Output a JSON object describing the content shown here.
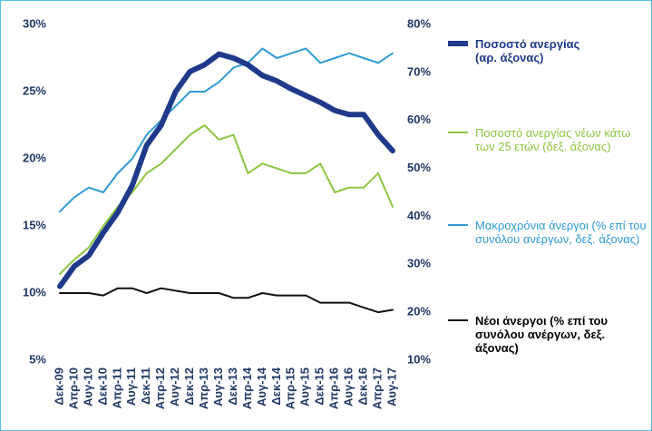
{
  "chart_data": {
    "type": "line",
    "categories": [
      "Δεκ-09",
      "Απρ-10",
      "Αυγ-10",
      "Δεκ-10",
      "Απρ-11",
      "Αυγ-11",
      "Δεκ-11",
      "Απρ-12",
      "Αυγ-12",
      "Δεκ-12",
      "Απρ-13",
      "Αυγ-13",
      "Δεκ-13",
      "Απρ-14",
      "Αυγ-14",
      "Δεκ-14",
      "Απρ-15",
      "Αυγ-15",
      "Δεκ-15",
      "Απρ-16",
      "Αυγ-16",
      "Δεκ-16",
      "Απρ-17",
      "Αυγ-17"
    ],
    "ylim": [
      5,
      30
    ],
    "yticks": [
      {
        "value": 5,
        "label": "5%"
      },
      {
        "value": 10,
        "label": "10%"
      },
      {
        "value": 15,
        "label": "15%"
      },
      {
        "value": 20,
        "label": "20%"
      },
      {
        "value": 25,
        "label": "25%"
      },
      {
        "value": 30,
        "label": "30%"
      }
    ],
    "y2lim": [
      10,
      80
    ],
    "y2ticks": [
      {
        "value": 10,
        "label": "10%"
      },
      {
        "value": 20,
        "label": "20%"
      },
      {
        "value": 30,
        "label": "30%"
      },
      {
        "value": 40,
        "label": "40%"
      },
      {
        "value": 50,
        "label": "50%"
      },
      {
        "value": 60,
        "label": "60%"
      },
      {
        "value": 70,
        "label": "70%"
      },
      {
        "value": 80,
        "label": "80%"
      }
    ],
    "series": [
      {
        "name": "Ποσοστό ανεργίας (αρ. άξονας)",
        "color": "#1f3a8a",
        "axis": "y",
        "values": [
          10.5,
          12,
          12.8,
          14.5,
          16,
          18,
          21,
          22.5,
          25,
          26.5,
          27,
          27.8,
          27.5,
          27,
          26.2,
          25.8,
          25.2,
          24.7,
          24.2,
          23.6,
          23.3,
          23.3,
          21.8,
          20.6
        ]
      },
      {
        "name": "Ποσοστό ανεργίας νέων κάτω των 25 ετών (δεξ. άξονας)",
        "color": "#8dc63f",
        "axis": "y2",
        "values": [
          28,
          31,
          33.5,
          38,
          42,
          45,
          49,
          51,
          54,
          57,
          59,
          56,
          57,
          49,
          51,
          50,
          49,
          49,
          51,
          45,
          46,
          46,
          49,
          42
        ]
      },
      {
        "name": "Μακροχρόνια άνεργοι (% επί του συνόλου ανέργων, δεξ. άξονας)",
        "color": "#2e9bd6",
        "axis": "y2",
        "values": [
          41,
          44,
          46,
          45,
          49,
          52,
          57,
          60,
          63,
          66,
          66,
          68,
          71,
          72,
          75,
          73,
          74,
          75,
          72,
          73,
          74,
          73,
          72,
          74
        ]
      },
      {
        "name": "Νέοι άνεργοι (% επί του συνόλου ανέργων, δεξ. άξονας)",
        "color": "#111111",
        "axis": "y2",
        "values": [
          24,
          24,
          24,
          23.5,
          25,
          25,
          24,
          25,
          24.5,
          24,
          24,
          24,
          23,
          23,
          24,
          23.5,
          23.5,
          23.5,
          22,
          22,
          22,
          21,
          20,
          20.5
        ]
      }
    ]
  }
}
